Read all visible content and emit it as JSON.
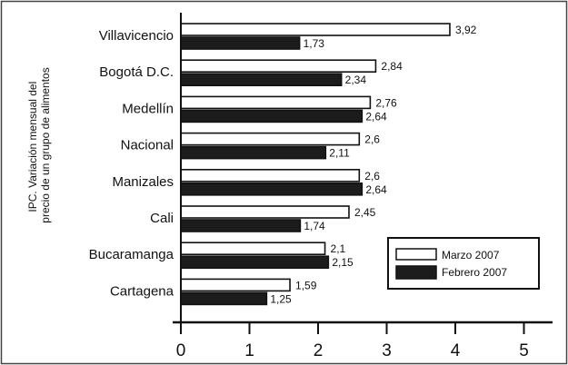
{
  "chart_data": {
    "type": "bar",
    "orientation": "horizontal",
    "ylabel": [
      "IPC. Variación mensual del",
      "precio de un grupo de alimentos"
    ],
    "categories": [
      "Villavicencio",
      "Bogotá D.C.",
      "Medellín",
      "Nacional",
      "Manizales",
      "Cali",
      "Bucaramanga",
      "Cartagena"
    ],
    "series": [
      {
        "name": "Marzo 2007",
        "fill": "#ffffff",
        "values": [
          3.92,
          2.84,
          2.76,
          2.6,
          2.6,
          2.45,
          2.1,
          1.59
        ],
        "labels": [
          "3,92",
          "2,84",
          "2,76",
          "2,6",
          "2,6",
          "2,45",
          "2,1",
          "1,59"
        ]
      },
      {
        "name": "Febrero 2007",
        "fill": "#1c1c1c",
        "values": [
          1.73,
          2.34,
          2.64,
          2.11,
          2.64,
          1.74,
          2.15,
          1.25
        ],
        "labels": [
          "1,73",
          "2,34",
          "2,64",
          "2,11",
          "2,64",
          "1,74",
          "2,15",
          "1,25"
        ]
      }
    ],
    "xlim": [
      0,
      5
    ],
    "xticks": [
      "0",
      "1",
      "2",
      "3",
      "4",
      "5"
    ],
    "grid": false,
    "legend_position": "bottom-right"
  }
}
